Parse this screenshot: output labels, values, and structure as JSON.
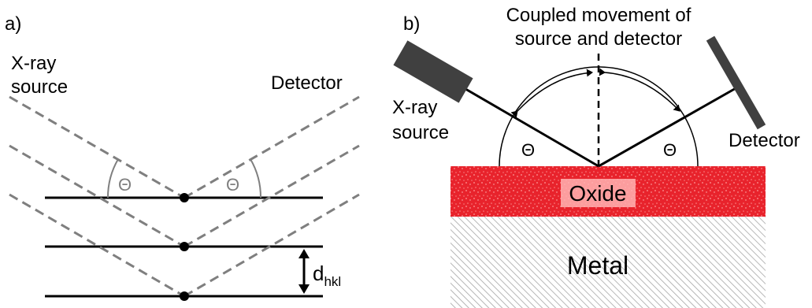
{
  "panel_a": {
    "label": "a)",
    "source_label_line1": "X-ray",
    "source_label_line2": "source",
    "detector_label": "Detector",
    "theta_left": "Θ",
    "theta_right": "Θ",
    "spacing_label_main": "d",
    "spacing_label_sub": "hkl"
  },
  "panel_b": {
    "label": "b)",
    "title_line1": "Coupled movement of",
    "title_line2": "source and detector",
    "source_label_line1": "X-ray",
    "source_label_line2": "source",
    "detector_label": "Detector",
    "theta_left": "Θ",
    "theta_right": "Θ",
    "oxide_label": "Oxide",
    "metal_label": "Metal"
  },
  "colors": {
    "oxide": "#e8232c",
    "beam_dashed": "#7f7f7f",
    "theta_grey": "#7f7f7f",
    "tube": "#404040"
  }
}
